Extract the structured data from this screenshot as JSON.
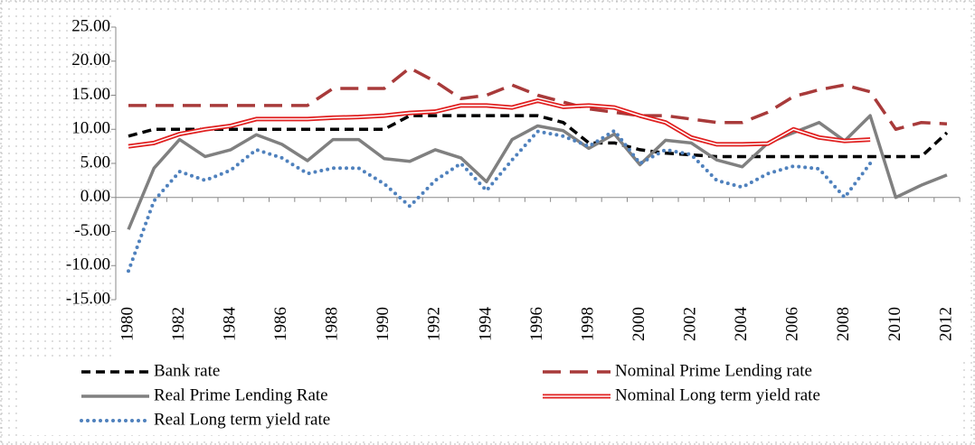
{
  "chart_data": {
    "type": "line",
    "categories": [
      "1980",
      null,
      "1982",
      null,
      "1984",
      null,
      "1986",
      null,
      "1988",
      null,
      "1990",
      null,
      "1992",
      null,
      "1994",
      null,
      "1996",
      null,
      "1998",
      null,
      "2000",
      null,
      "2002",
      null,
      "2004",
      null,
      "2006",
      null,
      "2008",
      null,
      "2010",
      null,
      "2012"
    ],
    "ylim": [
      -15,
      25
    ],
    "yticks": [
      {
        "value": -15,
        "label": "-15.00"
      },
      {
        "value": -10,
        "label": "-10.00"
      },
      {
        "value": -5,
        "label": "-5.00"
      },
      {
        "value": 0,
        "label": "0.00"
      },
      {
        "value": 5,
        "label": "5.00"
      },
      {
        "value": 10,
        "label": "10.00"
      },
      {
        "value": 15,
        "label": "15.00"
      },
      {
        "value": 20,
        "label": "20.00"
      },
      {
        "value": 25,
        "label": "25.00"
      }
    ],
    "legend": "bottom",
    "series": [
      {
        "name": "Bank rate",
        "color": "#000000",
        "style": "dashed",
        "values": [
          9,
          10,
          10,
          10,
          10,
          10,
          10,
          10,
          10,
          10,
          10,
          12,
          12,
          12,
          12,
          12,
          12,
          11,
          8,
          8,
          7,
          6.5,
          6.25,
          6,
          6,
          6,
          6,
          6,
          6,
          6,
          6,
          6,
          9.5
        ]
      },
      {
        "name": "Nominal Prime Lending rate",
        "color": "#a83a3a",
        "style": "long-dashed",
        "values": [
          13.5,
          13.5,
          13.5,
          13.5,
          13.5,
          13.5,
          13.5,
          13.5,
          16,
          16,
          16,
          19,
          17,
          14.5,
          15,
          16.5,
          15,
          14,
          13,
          12.5,
          12,
          12,
          11.5,
          11,
          11,
          12.5,
          14.8,
          15.8,
          16.5,
          15.5,
          10,
          11,
          10.8
        ]
      },
      {
        "name": "Real Prime Lending Rate",
        "color": "#808080",
        "style": "solid",
        "values": [
          -4.7,
          4.3,
          8.5,
          6,
          7,
          9.2,
          7.8,
          5.4,
          8.5,
          8.5,
          5.7,
          5.3,
          7,
          5.8,
          2.3,
          8.5,
          10.5,
          9.8,
          7.2,
          9.3,
          4.8,
          8.4,
          8,
          5.5,
          4.5,
          8,
          9.5,
          11,
          8.3,
          12,
          0,
          1.8,
          3.3
        ]
      },
      {
        "name": "Nominal Long term yield rate",
        "color": "#e02020",
        "style": "double",
        "values": [
          7.5,
          8,
          9.3,
          10,
          10.5,
          11.5,
          11.5,
          11.5,
          11.7,
          11.8,
          12,
          12.4,
          12.6,
          13.5,
          13.5,
          13.2,
          14.2,
          13.3,
          13.5,
          13.2,
          12,
          11,
          8.8,
          7.8,
          7.8,
          7.9,
          10,
          8.8,
          8.3,
          8.5,
          null,
          null,
          null
        ]
      },
      {
        "name": "Real Long term yield rate",
        "color": "#4f81bd",
        "style": "dotted",
        "values": [
          -10.8,
          -0.5,
          3.8,
          2.5,
          4,
          7,
          5.8,
          3.5,
          4.3,
          4.3,
          2,
          -1.3,
          2.5,
          5,
          1,
          5.5,
          9.7,
          9,
          7.5,
          9.8,
          5,
          7,
          6.3,
          2.5,
          1.5,
          3.5,
          4.6,
          4.2,
          0,
          5,
          null,
          null,
          null
        ]
      }
    ]
  }
}
